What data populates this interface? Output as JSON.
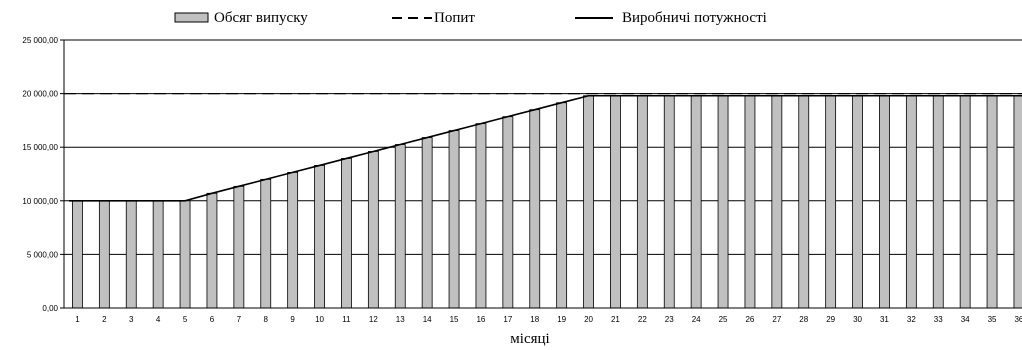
{
  "chart_data": {
    "type": "bar",
    "xlabel": "місяці",
    "ylabel": "",
    "ylim": [
      0,
      25000
    ],
    "yticks": [
      "0,00",
      "5 000,00",
      "10 000,00",
      "15 000,00",
      "20 000,00",
      "25 000,00"
    ],
    "legend_position": "top",
    "categories": [
      "1",
      "2",
      "3",
      "4",
      "5",
      "6",
      "7",
      "8",
      "9",
      "10",
      "11",
      "12",
      "13",
      "14",
      "15",
      "16",
      "17",
      "18",
      "19",
      "20",
      "21",
      "22",
      "23",
      "24",
      "25",
      "26",
      "27",
      "28",
      "29",
      "30",
      "31",
      "32",
      "33",
      "34",
      "35",
      "36"
    ],
    "series": [
      {
        "name": "Обсяг випуску",
        "kind": "bar",
        "color": "#c0c0c0",
        "values": [
          10000,
          10000,
          10000,
          10000,
          10000,
          10700,
          11350,
          12000,
          12650,
          13300,
          13950,
          14600,
          15250,
          15900,
          16550,
          17200,
          17850,
          18500,
          19150,
          19800,
          19800,
          19800,
          19800,
          19800,
          19800,
          19800,
          19800,
          19800,
          19800,
          19800,
          19800,
          19800,
          19800,
          19800,
          19800,
          19800
        ]
      },
      {
        "name": "Попит",
        "kind": "dashed-line",
        "color": "#000000",
        "values": [
          20000,
          20000,
          20000,
          20000,
          20000,
          20000,
          20000,
          20000,
          20000,
          20000,
          20000,
          20000,
          20000,
          20000,
          20000,
          20000,
          20000,
          20000,
          20000,
          20000,
          20000,
          20000,
          20000,
          20000,
          20000,
          20000,
          20000,
          20000,
          20000,
          20000,
          20000,
          20000,
          20000,
          20000,
          20000,
          20000
        ]
      },
      {
        "name": "Виробничі потужності",
        "kind": "solid-line",
        "color": "#000000",
        "values": [
          10000,
          10000,
          10000,
          10000,
          10000,
          10700,
          11350,
          12000,
          12650,
          13300,
          13950,
          14600,
          15250,
          15900,
          16550,
          17200,
          17850,
          18500,
          19150,
          19800,
          19800,
          19800,
          19800,
          19800,
          19800,
          19800,
          19800,
          19800,
          19800,
          19800,
          19800,
          19800,
          19800,
          19800,
          19800,
          19800
        ]
      }
    ]
  }
}
